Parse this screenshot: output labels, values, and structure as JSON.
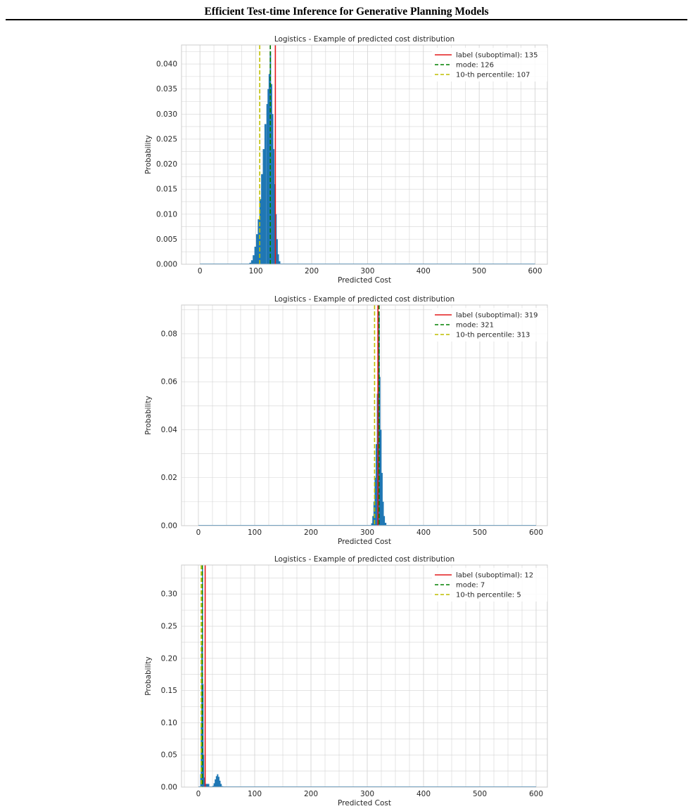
{
  "header": {
    "title": "Efficient Test-time Inference for Generative Planning Models"
  },
  "colors": {
    "bar": "#1f77b4",
    "label": "#e41a1c",
    "mode": "#008000",
    "percentile": "#bfbf00",
    "grid": "#d4d4d4"
  },
  "chart_data": [
    {
      "type": "bar",
      "title": "Logistics - Example of predicted cost distribution",
      "xlabel": "Predicted Cost",
      "ylabel": "Probability",
      "xlim": [
        -33,
        622
      ],
      "ylim": [
        0,
        0.0438
      ],
      "xticks": [
        0,
        100,
        200,
        300,
        400,
        500,
        600
      ],
      "yticks": [
        0.0,
        0.005,
        0.01,
        0.015,
        0.02,
        0.025,
        0.03,
        0.035,
        0.04
      ],
      "ytick_labels": [
        "0.000",
        "0.005",
        "0.010",
        "0.015",
        "0.020",
        "0.025",
        "0.030",
        "0.035",
        "0.040"
      ],
      "xtick_labels": [
        "0",
        "100",
        "200",
        "300",
        "400",
        "500",
        "600"
      ],
      "grid": true,
      "legend_position": "top-right",
      "distribution": [
        {
          "x": 90,
          "p": 0.0003
        },
        {
          "x": 93,
          "p": 0.0008
        },
        {
          "x": 96,
          "p": 0.0018
        },
        {
          "x": 99,
          "p": 0.0035
        },
        {
          "x": 102,
          "p": 0.006
        },
        {
          "x": 105,
          "p": 0.009
        },
        {
          "x": 108,
          "p": 0.013
        },
        {
          "x": 111,
          "p": 0.018
        },
        {
          "x": 114,
          "p": 0.023
        },
        {
          "x": 117,
          "p": 0.028
        },
        {
          "x": 120,
          "p": 0.032
        },
        {
          "x": 122,
          "p": 0.035
        },
        {
          "x": 124,
          "p": 0.038
        },
        {
          "x": 126,
          "p": 0.0425
        },
        {
          "x": 128,
          "p": 0.036
        },
        {
          "x": 130,
          "p": 0.03
        },
        {
          "x": 132,
          "p": 0.023
        },
        {
          "x": 134,
          "p": 0.016
        },
        {
          "x": 136,
          "p": 0.01
        },
        {
          "x": 138,
          "p": 0.005
        },
        {
          "x": 140,
          "p": 0.002
        },
        {
          "x": 142,
          "p": 0.0006
        }
      ],
      "vlines": [
        {
          "name": "label (suboptimal): 135",
          "x": 135,
          "style": "solid",
          "color": "#e41a1c"
        },
        {
          "name": "mode: 126",
          "x": 126,
          "style": "dashed",
          "color": "#008000"
        },
        {
          "name": "10-th percentile: 107",
          "x": 107,
          "style": "dashed",
          "color": "#bfbf00"
        }
      ]
    },
    {
      "type": "bar",
      "title": "Logistics - Example of predicted cost distribution",
      "xlabel": "Predicted Cost",
      "ylabel": "Probability",
      "xlim": [
        -30,
        620
      ],
      "ylim": [
        0,
        0.092
      ],
      "xticks": [
        0,
        100,
        200,
        300,
        400,
        500,
        600
      ],
      "yticks": [
        0.0,
        0.02,
        0.04,
        0.06,
        0.08
      ],
      "ytick_labels": [
        "0.00",
        "0.02",
        "0.04",
        "0.06",
        "0.08"
      ],
      "xtick_labels": [
        "0",
        "100",
        "200",
        "300",
        "400",
        "500",
        "600"
      ],
      "grid": true,
      "legend_position": "top-right",
      "distribution": [
        {
          "x": 308,
          "p": 0.001
        },
        {
          "x": 310,
          "p": 0.004
        },
        {
          "x": 312,
          "p": 0.01
        },
        {
          "x": 314,
          "p": 0.02
        },
        {
          "x": 316,
          "p": 0.034
        },
        {
          "x": 318,
          "p": 0.055
        },
        {
          "x": 320,
          "p": 0.075
        },
        {
          "x": 321,
          "p": 0.088
        },
        {
          "x": 322,
          "p": 0.062
        },
        {
          "x": 324,
          "p": 0.04
        },
        {
          "x": 326,
          "p": 0.022
        },
        {
          "x": 328,
          "p": 0.01
        },
        {
          "x": 330,
          "p": 0.004
        },
        {
          "x": 332,
          "p": 0.0012
        }
      ],
      "vlines": [
        {
          "name": "label (suboptimal): 319",
          "x": 319,
          "style": "solid",
          "color": "#e41a1c"
        },
        {
          "name": "mode: 321",
          "x": 321,
          "style": "dashed",
          "color": "#008000"
        },
        {
          "name": "10-th percentile: 313",
          "x": 313,
          "style": "dashed",
          "color": "#bfbf00"
        }
      ]
    },
    {
      "type": "bar",
      "title": "Logistics - Example of predicted cost distribution",
      "xlabel": "Predicted Cost",
      "ylabel": "Probability",
      "xlim": [
        -30,
        620
      ],
      "ylim": [
        0,
        0.345
      ],
      "xticks": [
        0,
        100,
        200,
        300,
        400,
        500,
        600
      ],
      "yticks": [
        0.0,
        0.05,
        0.1,
        0.15,
        0.2,
        0.25,
        0.3
      ],
      "ytick_labels": [
        "0.00",
        "0.05",
        "0.10",
        "0.15",
        "0.20",
        "0.25",
        "0.30"
      ],
      "xtick_labels": [
        "0",
        "100",
        "200",
        "300",
        "400",
        "500",
        "600"
      ],
      "grid": true,
      "legend_position": "top-right",
      "distribution": [
        {
          "x": 4,
          "p": 0.02
        },
        {
          "x": 5,
          "p": 0.1
        },
        {
          "x": 6,
          "p": 0.22
        },
        {
          "x": 7,
          "p": 0.34
        },
        {
          "x": 8,
          "p": 0.16
        },
        {
          "x": 9,
          "p": 0.05
        },
        {
          "x": 10,
          "p": 0.015
        },
        {
          "x": 12,
          "p": 0.005
        },
        {
          "x": 26,
          "p": 0.002
        },
        {
          "x": 28,
          "p": 0.006
        },
        {
          "x": 30,
          "p": 0.012
        },
        {
          "x": 32,
          "p": 0.017
        },
        {
          "x": 34,
          "p": 0.02
        },
        {
          "x": 36,
          "p": 0.016
        },
        {
          "x": 38,
          "p": 0.01
        },
        {
          "x": 40,
          "p": 0.005
        },
        {
          "x": 42,
          "p": 0.0015
        }
      ],
      "vlines": [
        {
          "name": "label (suboptimal): 12",
          "x": 12,
          "style": "solid",
          "color": "#e41a1c"
        },
        {
          "name": "mode: 7",
          "x": 7,
          "style": "dashed",
          "color": "#008000"
        },
        {
          "name": "10-th percentile: 5",
          "x": 5,
          "style": "dashed",
          "color": "#bfbf00"
        }
      ]
    }
  ]
}
